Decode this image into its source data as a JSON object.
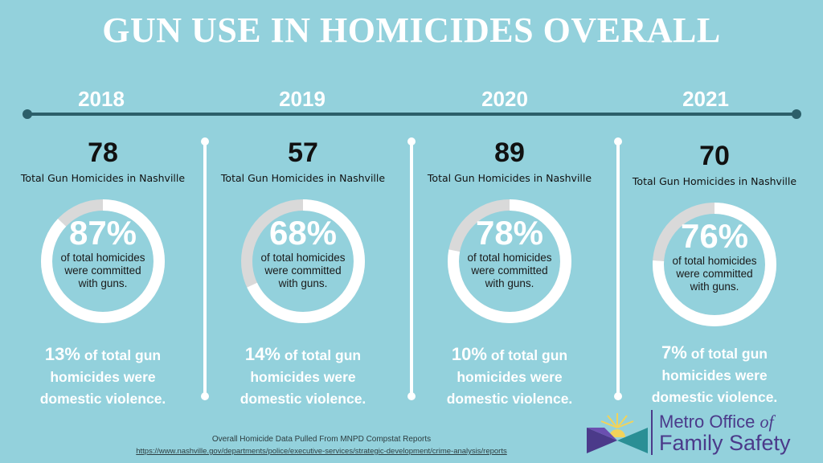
{
  "title": "GUN USE IN HOMICIDES OVERALL",
  "colors": {
    "background": "#93d1dc",
    "timeline": "#2c5f6a",
    "ring_fill": "#ffffff",
    "ring_track": "#d9d9d9",
    "logo_purple": "#4b3a8a"
  },
  "years": [
    {
      "year": "2018",
      "gun_homicides": "78",
      "gun_homicides_label": "Total Gun Homicides in Nashville",
      "gun_share_pct": 87,
      "gun_share_label": "87%",
      "gun_share_desc_1": "of total homicides",
      "gun_share_desc_2": "were committed",
      "gun_share_desc_3": "with guns.",
      "dv_pct": "13%",
      "dv_text_1": "of total gun",
      "dv_text_2": "homicides were",
      "dv_text_3": "domestic violence."
    },
    {
      "year": "2019",
      "gun_homicides": "57",
      "gun_homicides_label": "Total Gun Homicides in Nashville",
      "gun_share_pct": 68,
      "gun_share_label": "68%",
      "gun_share_desc_1": "of total homicides",
      "gun_share_desc_2": "were committed",
      "gun_share_desc_3": "with guns.",
      "dv_pct": "14%",
      "dv_text_1": "of total gun",
      "dv_text_2": "homicides were",
      "dv_text_3": "domestic violence."
    },
    {
      "year": "2020",
      "gun_homicides": "89",
      "gun_homicides_label": "Total Gun Homicides in Nashville",
      "gun_share_pct": 78,
      "gun_share_label": "78%",
      "gun_share_desc_1": "of total homicides",
      "gun_share_desc_2": "were committed",
      "gun_share_desc_3": "with guns.",
      "dv_pct": "10%",
      "dv_text_1": "of total gun",
      "dv_text_2": "homicides were",
      "dv_text_3": "domestic violence."
    },
    {
      "year": "2021",
      "gun_homicides": "70",
      "gun_homicides_label": "Total Gun Homicides in Nashville",
      "gun_share_pct": 76,
      "gun_share_label": "76%",
      "gun_share_desc_1": "of total homicides",
      "gun_share_desc_2": "were committed",
      "gun_share_desc_3": "with guns.",
      "dv_pct": "7%",
      "dv_text_1": "of total gun",
      "dv_text_2": "homicides were",
      "dv_text_3": "domestic violence."
    }
  ],
  "source": {
    "text": "Overall Homicide Data Pulled From MNPD Compstat Reports",
    "url": "https://www.nashville.gov/departments/police/executive-services/strategic-development/crime-analysis/reports"
  },
  "logo": {
    "line1_a": "Metro Office ",
    "line1_b": "of",
    "line2": "Family Safety"
  }
}
